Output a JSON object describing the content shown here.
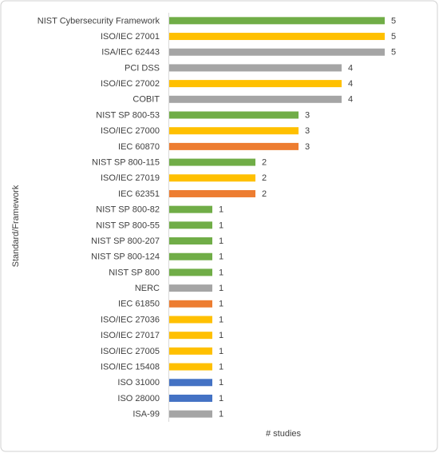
{
  "chart_data": {
    "type": "bar",
    "orientation": "horizontal",
    "x_label": "# studies",
    "y_label": "Standard/Framework",
    "categories": [
      "NIST Cybersecurity Framework",
      "ISO/IEC 27001",
      "ISA/IEC 62443",
      "PCI DSS",
      "ISO/IEC 27002",
      "COBIT",
      "NIST SP 800-53",
      "ISO/IEC 27000",
      "IEC 60870",
      "NIST SP 800-115",
      "ISO/IEC 27019",
      "IEC 62351",
      "NIST SP 800-82",
      "NIST SP 800-55",
      "NIST SP 800-207",
      "NIST SP 800-124",
      "NIST SP 800",
      "NERC",
      "IEC 61850",
      "ISO/IEC 27036",
      "ISO/IEC 27017",
      "ISO/IEC 27005",
      "ISO/IEC 15408",
      "ISO 31000",
      "ISO 28000",
      "ISA-99"
    ],
    "values": [
      5,
      5,
      5,
      4,
      4,
      4,
      3,
      3,
      3,
      2,
      2,
      2,
      1,
      1,
      1,
      1,
      1,
      1,
      1,
      1,
      1,
      1,
      1,
      1,
      1,
      1
    ],
    "colors": [
      "#70ad47",
      "#ffc000",
      "#a5a5a5",
      "#a5a5a5",
      "#ffc000",
      "#a5a5a5",
      "#70ad47",
      "#ffc000",
      "#ed7d31",
      "#70ad47",
      "#ffc000",
      "#ed7d31",
      "#70ad47",
      "#70ad47",
      "#70ad47",
      "#70ad47",
      "#70ad47",
      "#a5a5a5",
      "#ed7d31",
      "#ffc000",
      "#ffc000",
      "#ffc000",
      "#ffc000",
      "#4472c4",
      "#4472c4",
      "#a5a5a5"
    ],
    "xlim": [
      0,
      6
    ],
    "data_labels": true
  }
}
